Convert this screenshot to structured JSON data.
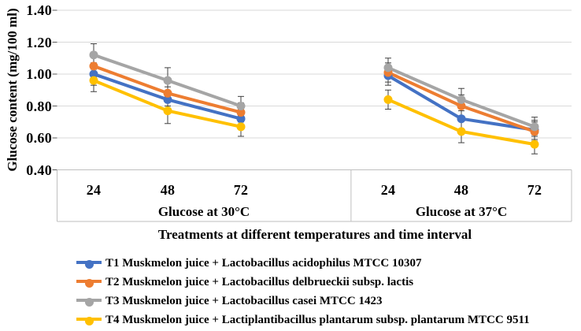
{
  "chart_data": {
    "type": "line",
    "title": "",
    "ylabel": "Glucose content (mg/100 ml)",
    "xlabel": "Treatments at different temperatures and time interval",
    "ylim": [
      0.4,
      1.4
    ],
    "y_tick_step": 0.2,
    "y_ticks": [
      "1.40",
      "1.20",
      "1.00",
      "0.80",
      "0.60",
      "0.40"
    ],
    "grid": true,
    "legend_position": "bottom-left",
    "marker": "circle",
    "error_bars": true,
    "errors": [
      0.07,
      0.08,
      0.06,
      0.06,
      0.07,
      0.06
    ],
    "groups": [
      {
        "label": "Glucose at 30°C",
        "categories": [
          "24",
          "48",
          "72"
        ]
      },
      {
        "label": "Glucose at 37°C",
        "categories": [
          "24",
          "48",
          "72"
        ]
      }
    ],
    "series": [
      {
        "name": "T1 Muskmelon juice + Lactobacillus acidophilus MTCC 10307",
        "color": "#4472C4",
        "values": [
          [
            1.0,
            0.84,
            0.72
          ],
          [
            0.99,
            0.72,
            0.65
          ]
        ]
      },
      {
        "name": "T2 Muskmelon juice + Lactobacillus delbrueckii subsp. lactis",
        "color": "#ED7D31",
        "values": [
          [
            1.05,
            0.88,
            0.76
          ],
          [
            1.01,
            0.8,
            0.64
          ]
        ]
      },
      {
        "name": "T3 Muskmelon juice + Lactobacillus casei MTCC 1423",
        "color": "#A5A5A5",
        "values": [
          [
            1.12,
            0.96,
            0.8
          ],
          [
            1.04,
            0.84,
            0.67
          ]
        ]
      },
      {
        "name": "T4 Muskmelon juice + Lactiplantibacillus plantarum subsp. plantarum MTCC 9511",
        "color": "#FFC000",
        "values": [
          [
            0.96,
            0.77,
            0.67
          ],
          [
            0.84,
            0.64,
            0.56
          ]
        ]
      }
    ],
    "colors": {
      "gridline": "#D9D9D9",
      "axis_band_border": "#BFBFBF",
      "error_bar": "#404040",
      "text": "#000000"
    }
  }
}
